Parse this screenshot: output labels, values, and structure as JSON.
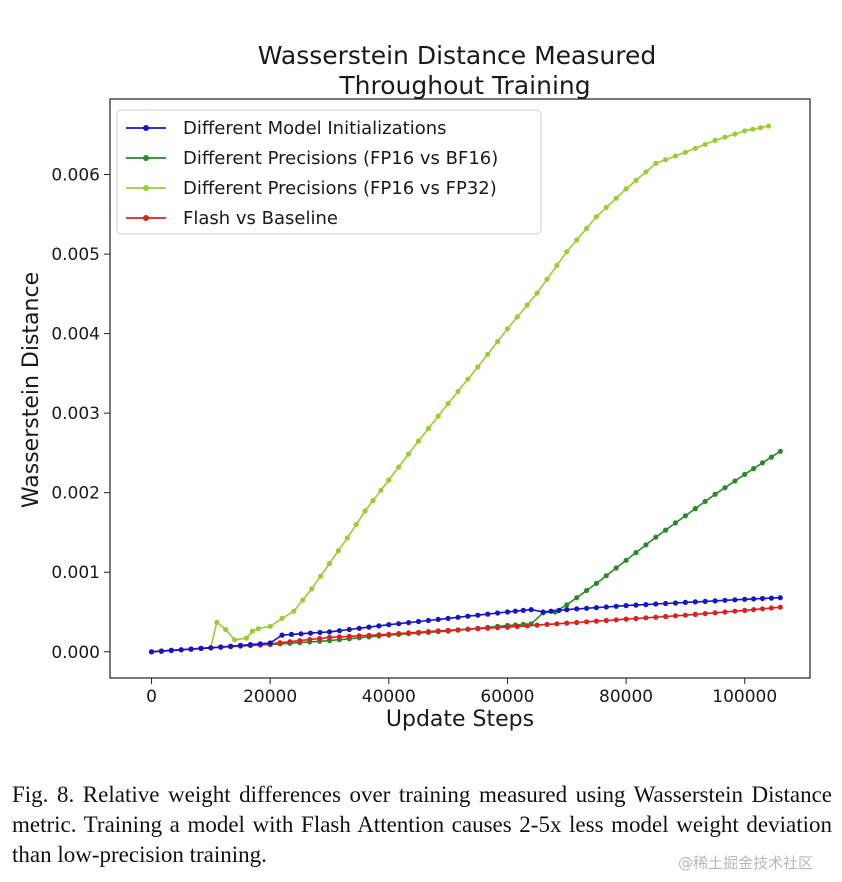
{
  "chart_data": {
    "type": "line",
    "title": [
      "Wasserstein Distance Measured",
      "Throughout Training"
    ],
    "xlabel": "Update Steps",
    "ylabel": "Wasserstein Distance",
    "xlim": [
      -7000,
      111000
    ],
    "ylim": [
      -0.00033,
      0.00695
    ],
    "xticks": [
      0,
      20000,
      40000,
      60000,
      80000,
      100000
    ],
    "xtick_labels": [
      "0",
      "20000",
      "40000",
      "60000",
      "80000",
      "100000"
    ],
    "yticks": [
      0.0,
      0.001,
      0.002,
      0.003,
      0.004,
      0.005,
      0.006
    ],
    "ytick_labels": [
      "0.000",
      "0.001",
      "0.002",
      "0.003",
      "0.004",
      "0.005",
      "0.006"
    ],
    "grid": false,
    "legend_position": "top-left",
    "marker": "circle",
    "series": [
      {
        "name": "Different Model Initializations",
        "color": "#1414c8",
        "x": [
          0,
          10000,
          20000,
          22000,
          30000,
          40000,
          50000,
          60000,
          64000,
          66000,
          70000,
          80000,
          90000,
          100000,
          106000
        ],
        "y": [
          0.0,
          5e-05,
          0.00011,
          0.00021,
          0.00025,
          0.00034,
          0.00042,
          0.0005,
          0.00053,
          0.0005,
          0.00053,
          0.00058,
          0.00062,
          0.00066,
          0.00068
        ]
      },
      {
        "name": "Different Precisions (FP16 vs BF16)",
        "color": "#2a8a2a",
        "x": [
          0,
          10000,
          20000,
          30000,
          40000,
          50000,
          60000,
          64000,
          66000,
          68000,
          70000,
          75000,
          80000,
          85000,
          90000,
          95000,
          100000,
          106000
        ],
        "y": [
          0.0,
          5e-05,
          9e-05,
          0.00014,
          0.00021,
          0.00026,
          0.00033,
          0.00035,
          0.00049,
          0.0005,
          0.00059,
          0.00086,
          0.00115,
          0.00144,
          0.00171,
          0.00198,
          0.00223,
          0.00252
        ]
      },
      {
        "name": "Different Precisions (FP16 vs FP32)",
        "color": "#9acd32",
        "x": [
          0,
          10000,
          11000,
          12500,
          14000,
          16000,
          17000,
          18000,
          20000,
          22000,
          24000,
          27000,
          30000,
          33000,
          36000,
          40000,
          45000,
          50000,
          55000,
          60000,
          65000,
          70000,
          75000,
          80000,
          85000,
          90000,
          95000,
          100000,
          104000
        ],
        "y": [
          0.0,
          5e-05,
          0.00037,
          0.00028,
          0.00015,
          0.00017,
          0.00026,
          0.00029,
          0.00032,
          0.00042,
          0.00051,
          0.00079,
          0.00111,
          0.00143,
          0.00177,
          0.00216,
          0.00265,
          0.00312,
          0.00358,
          0.00406,
          0.00451,
          0.00503,
          0.00547,
          0.00582,
          0.00614,
          0.00628,
          0.00643,
          0.00655,
          0.00661
        ]
      },
      {
        "name": "Flash vs Baseline",
        "color": "#e02020",
        "x": [
          0,
          10000,
          20000,
          30000,
          40000,
          50000,
          60000,
          70000,
          80000,
          90000,
          100000,
          106000
        ],
        "y": [
          0.0,
          5e-05,
          0.0001,
          0.00018,
          0.00022,
          0.00027,
          0.00031,
          0.00036,
          0.00041,
          0.00046,
          0.00052,
          0.00056
        ]
      }
    ]
  },
  "caption": {
    "text": "Fig. 8.  Relative weight differences over training measured using Wasserstein Distance metric. Training a model with Flash Attention causes 2-5x less model weight deviation than low-precision training."
  },
  "watermark": {
    "text": "@稀土掘金技术社区"
  }
}
